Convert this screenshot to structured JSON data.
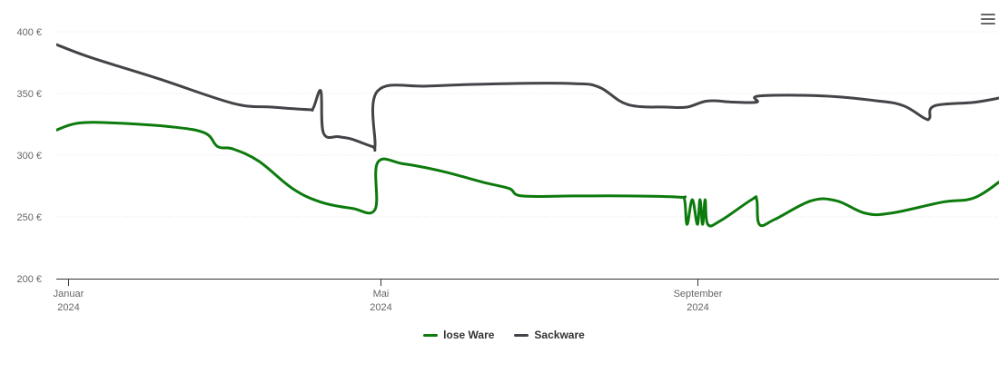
{
  "chart_data": {
    "type": "line",
    "currency_suffix": " €",
    "y_ticks": [
      400,
      350,
      300,
      250,
      200
    ],
    "y_tick_labels": [
      "400 €",
      "350 €",
      "300 €",
      "250 €",
      "200 €"
    ],
    "ylim": [
      200,
      400
    ],
    "xlim": [
      "2024-01-01",
      "2024-12-31"
    ],
    "x_ticks": [
      {
        "month": "Januar",
        "year": "2024",
        "date": "2024-01-01"
      },
      {
        "month": "Mai",
        "year": "2024",
        "date": "2024-05-01"
      },
      {
        "month": "September",
        "year": "2024",
        "date": "2024-09-01"
      }
    ],
    "grid": true,
    "legend_position": "bottom",
    "series": [
      {
        "name": "lose Ware",
        "color": "#0c7a0c",
        "points": [
          [
            "2023-12-27",
            320
          ],
          [
            "2024-01-05",
            326
          ],
          [
            "2024-01-20",
            326
          ],
          [
            "2024-02-10",
            323
          ],
          [
            "2024-02-23",
            318
          ],
          [
            "2024-02-28",
            307
          ],
          [
            "2024-03-05",
            305
          ],
          [
            "2024-03-15",
            295
          ],
          [
            "2024-03-28",
            273
          ],
          [
            "2024-04-08",
            262
          ],
          [
            "2024-04-20",
            257
          ],
          [
            "2024-04-29",
            256
          ],
          [
            "2024-04-30",
            294
          ],
          [
            "2024-05-10",
            293
          ],
          [
            "2024-05-25",
            287
          ],
          [
            "2024-06-10",
            278
          ],
          [
            "2024-06-20",
            273
          ],
          [
            "2024-06-25",
            267
          ],
          [
            "2024-07-15",
            267
          ],
          [
            "2024-08-05",
            267
          ],
          [
            "2024-08-25",
            266
          ],
          [
            "2024-08-27",
            264
          ],
          [
            "2024-08-28",
            244
          ],
          [
            "2024-08-30",
            264
          ],
          [
            "2024-09-01",
            244
          ],
          [
            "2024-09-02",
            264
          ],
          [
            "2024-09-03",
            244
          ],
          [
            "2024-09-04",
            264
          ],
          [
            "2024-09-05",
            244
          ],
          [
            "2024-09-10",
            247
          ],
          [
            "2024-09-22",
            264
          ],
          [
            "2024-09-24",
            264
          ],
          [
            "2024-09-25",
            244
          ],
          [
            "2024-10-01",
            248
          ],
          [
            "2024-10-15",
            263
          ],
          [
            "2024-10-25",
            263
          ],
          [
            "2024-11-05",
            253
          ],
          [
            "2024-11-15",
            253
          ],
          [
            "2024-12-05",
            262
          ],
          [
            "2024-12-18",
            266
          ],
          [
            "2024-12-31",
            285
          ]
        ]
      },
      {
        "name": "Sackware",
        "color": "#434348",
        "points": [
          [
            "2023-12-27",
            390
          ],
          [
            "2024-01-10",
            379
          ],
          [
            "2024-02-05",
            362
          ],
          [
            "2024-03-05",
            342
          ],
          [
            "2024-03-20",
            339
          ],
          [
            "2024-04-03",
            337
          ],
          [
            "2024-04-05",
            338
          ],
          [
            "2024-04-08",
            352
          ],
          [
            "2024-04-09",
            318
          ],
          [
            "2024-04-15",
            315
          ],
          [
            "2024-04-20",
            313
          ],
          [
            "2024-04-28",
            307
          ],
          [
            "2024-04-29",
            308
          ],
          [
            "2024-04-30",
            352
          ],
          [
            "2024-05-20",
            356
          ],
          [
            "2024-06-20",
            358
          ],
          [
            "2024-07-15",
            358
          ],
          [
            "2024-07-25",
            355
          ],
          [
            "2024-08-05",
            341
          ],
          [
            "2024-08-20",
            339
          ],
          [
            "2024-08-28",
            339
          ],
          [
            "2024-09-05",
            344
          ],
          [
            "2024-09-15",
            343
          ],
          [
            "2024-09-24",
            343
          ],
          [
            "2024-09-25",
            348
          ],
          [
            "2024-10-20",
            348
          ],
          [
            "2024-11-10",
            344
          ],
          [
            "2024-11-20",
            340
          ],
          [
            "2024-11-28",
            330
          ],
          [
            "2024-11-30",
            330
          ],
          [
            "2024-12-02",
            340
          ],
          [
            "2024-12-18",
            343
          ],
          [
            "2024-12-31",
            348
          ]
        ]
      }
    ]
  },
  "menu": {
    "icon": "hamburger-menu-icon"
  }
}
